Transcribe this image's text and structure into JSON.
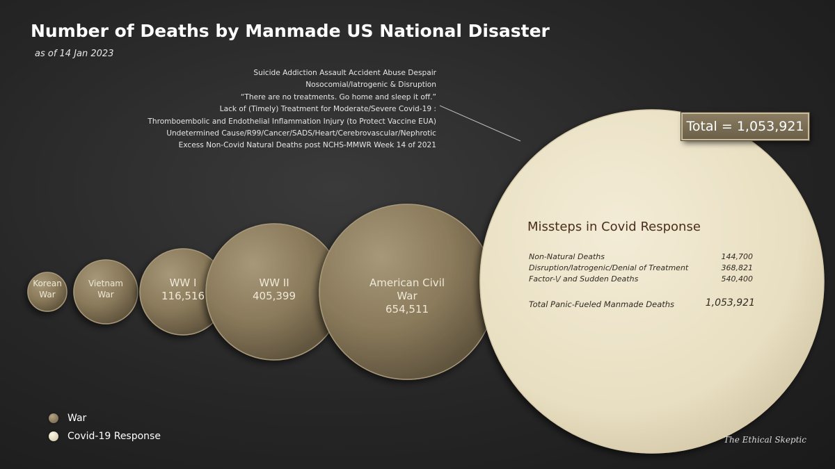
{
  "colors": {
    "war": "#8c7c5d",
    "covid": "#e9e0c4",
    "background": "#262626"
  },
  "chart_data": {
    "type": "bubble",
    "title": "Number of Deaths by Manmade US National Disaster",
    "subtitle": "as of 14 Jan 2023",
    "series": [
      {
        "name": "War",
        "points": [
          {
            "label": "Korean War",
            "label_lines": [
              "Korean",
              "War"
            ],
            "value_text": null,
            "value": 36574
          },
          {
            "label": "Vietnam War",
            "label_lines": [
              "Vietnam",
              "War"
            ],
            "value_text": null,
            "value": 58220
          },
          {
            "label": "WW I",
            "label_lines": [
              "WW I"
            ],
            "value_text": "116,516",
            "value": 116516
          },
          {
            "label": "WW II",
            "label_lines": [
              "WW II"
            ],
            "value_text": "405,399",
            "value": 405399
          },
          {
            "label": "American Civil War",
            "label_lines": [
              "American Civil",
              "War"
            ],
            "value_text": "654,511",
            "value": 654511
          }
        ]
      },
      {
        "name": "Covid-19 Response",
        "points": [
          {
            "label": "Missteps in Covid Response",
            "value": 1053921
          }
        ]
      }
    ],
    "cause_list": [
      "Suicide Addiction Assault Accident Abuse Despair",
      "Nosocomial/Iatrogenic & Disruption",
      "“There are no treatments. Go home and sleep it off.”",
      "Lack of (Timely) Treatment for Moderate/Severe Covid-19 :",
      "Thromboembolic and Endothelial Inflammation Injury (to Protect Vaccine EUA)",
      "Undetermined Cause/R99/Cancer/SADS/Heart/Cerebrovascular/Nephrotic",
      "Excess Non-Covid Natural Deaths post NCHS-MMWR Week 14 of 2021"
    ],
    "total_label": "Total = 1,053,921",
    "covid_breakdown": {
      "title": "Missteps in Covid Response",
      "rows": [
        {
          "label": "Non-Natural Deaths",
          "value": "144,700"
        },
        {
          "label": "Disruption/Iatrogenic/Denial of Treatment",
          "value": "368,821"
        },
        {
          "label": "Factor-\\/ and Sudden Deaths",
          "value": "540,400"
        }
      ],
      "total": {
        "label": "Total Panic-Fueled Manmade Deaths",
        "value": "1,053,921"
      }
    },
    "legend": [
      {
        "name": "War",
        "color": "#8c7c5d"
      },
      {
        "name": "Covid-19 Response",
        "color": "#e9e0c4"
      }
    ],
    "legend_position": "bottom-left",
    "credit": "The Ethical Skeptic"
  }
}
